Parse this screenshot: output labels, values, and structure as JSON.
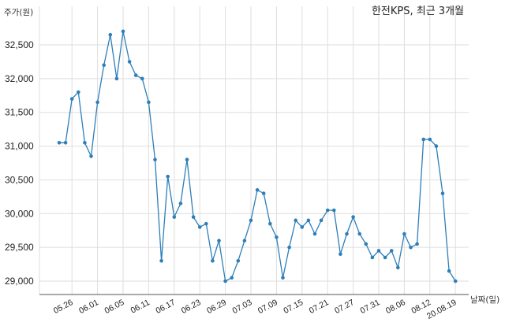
{
  "chart_data": {
    "type": "line",
    "title": "한전KPS, 최근 3개월",
    "ylabel": "주가(원)",
    "xlabel": "날짜(일)",
    "ylim": [
      28800,
      32800
    ],
    "yticks": [
      "32,500",
      "32,000",
      "31,500",
      "31,000",
      "30,500",
      "30,000",
      "29,500",
      "29,000"
    ],
    "ytick_values": [
      32500,
      32000,
      31500,
      31000,
      30500,
      30000,
      29500,
      29000
    ],
    "xticks": [
      "05.26",
      "06.01",
      "06.05",
      "06.11",
      "06.17",
      "06.23",
      "06.29",
      "07.03",
      "07.09",
      "07.15",
      "07.21",
      "07.27",
      "07.31",
      "08.06",
      "08.12",
      "20.08.19"
    ],
    "xtick_index": [
      2,
      6,
      10,
      14,
      18,
      22,
      26,
      30,
      34,
      38,
      42,
      46,
      50,
      54,
      58,
      62
    ],
    "grid": true,
    "line_color": "#2e7fb8",
    "series": [
      {
        "values": [
          31050,
          31050,
          31700,
          31800,
          31050,
          30850,
          31650,
          32200,
          32650,
          32000,
          32700,
          32250,
          32050,
          32000,
          31650,
          30800,
          29300,
          30550,
          29950,
          30150,
          30800,
          29950,
          29800,
          29850,
          29300,
          29600,
          29000,
          29050,
          29300,
          29600,
          29900,
          30350,
          30300,
          29850,
          29650,
          29050,
          29500,
          29900,
          29800,
          29900,
          29700,
          29900,
          30050,
          30050,
          29400,
          29700,
          29950,
          29700,
          29550,
          29350,
          29450,
          29350,
          29450,
          29200,
          29700,
          29500,
          29550,
          31100,
          31100,
          31000,
          30300,
          29150,
          29000
        ]
      }
    ]
  }
}
